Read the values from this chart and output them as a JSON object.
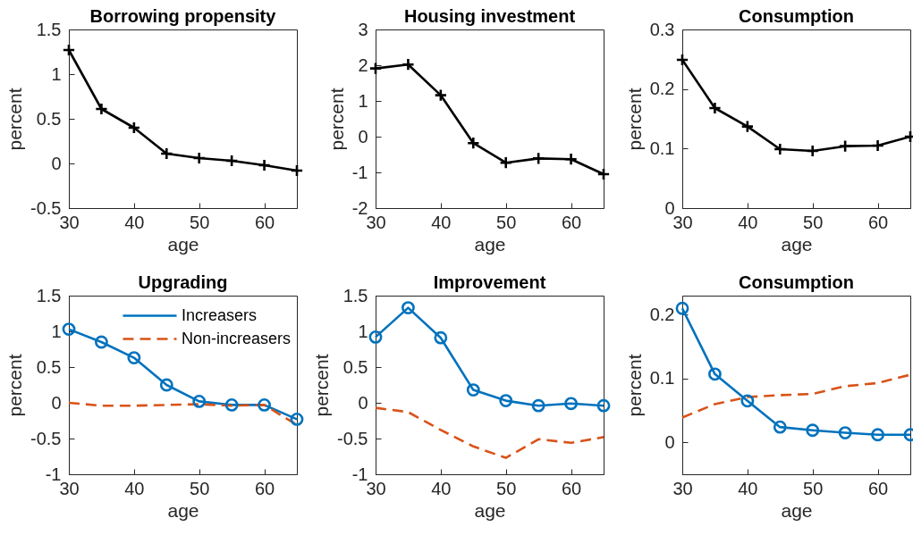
{
  "chart_data": [
    {
      "type": "line",
      "title": "Borrowing propensity",
      "xlabel": "age",
      "ylabel": "percent",
      "x": [
        30,
        35,
        40,
        45,
        50,
        55,
        60,
        65
      ],
      "xlim": [
        30,
        65
      ],
      "xticks": [
        30,
        40,
        50,
        60
      ],
      "ylim": [
        -0.5,
        1.5
      ],
      "yticks": [
        -0.5,
        0,
        0.5,
        1,
        1.5
      ],
      "series": [
        {
          "color": "#000000",
          "marker": "cross",
          "line_style": "solid",
          "values": [
            1.27,
            0.61,
            0.4,
            0.11,
            0.06,
            0.03,
            -0.02,
            -0.08
          ]
        }
      ]
    },
    {
      "type": "line",
      "title": "Housing investment",
      "xlabel": "age",
      "ylabel": "percent",
      "x": [
        30,
        35,
        40,
        45,
        50,
        55,
        60,
        65
      ],
      "xlim": [
        30,
        65
      ],
      "xticks": [
        30,
        40,
        50,
        60
      ],
      "ylim": [
        -2,
        3
      ],
      "yticks": [
        -2,
        -1,
        0,
        1,
        2,
        3
      ],
      "series": [
        {
          "color": "#000000",
          "marker": "cross",
          "line_style": "solid",
          "values": [
            1.91,
            2.02,
            1.16,
            -0.18,
            -0.73,
            -0.61,
            -0.63,
            -1.05
          ]
        }
      ]
    },
    {
      "type": "line",
      "title": "Consumption",
      "xlabel": "age",
      "ylabel": "percent",
      "x": [
        30,
        35,
        40,
        45,
        50,
        55,
        60,
        65
      ],
      "xlim": [
        30,
        65
      ],
      "xticks": [
        30,
        40,
        50,
        60
      ],
      "ylim": [
        0,
        0.3
      ],
      "yticks": [
        0,
        0.1,
        0.2,
        0.3
      ],
      "series": [
        {
          "color": "#000000",
          "marker": "cross",
          "line_style": "solid",
          "values": [
            0.249,
            0.168,
            0.137,
            0.099,
            0.096,
            0.104,
            0.105,
            0.12
          ]
        }
      ]
    },
    {
      "type": "line",
      "title": "Upgrading",
      "xlabel": "age",
      "ylabel": "percent",
      "x": [
        30,
        35,
        40,
        45,
        50,
        55,
        60,
        65
      ],
      "xlim": [
        30,
        65
      ],
      "xticks": [
        30,
        40,
        50,
        60
      ],
      "ylim": [
        -1,
        1.5
      ],
      "yticks": [
        -1,
        -0.5,
        0,
        0.5,
        1,
        1.5
      ],
      "legend": "top right",
      "series": [
        {
          "name": "Increasers",
          "color": "#0072bd",
          "marker": "circle",
          "line_style": "solid",
          "values": [
            1.03,
            0.85,
            0.63,
            0.25,
            0.02,
            -0.03,
            -0.03,
            -0.23
          ]
        },
        {
          "name": "Non-increasers",
          "color": "#d95319",
          "marker": "none",
          "line_style": "dashed",
          "values": [
            0,
            -0.04,
            -0.04,
            -0.03,
            -0.02,
            -0.04,
            -0.03,
            -0.31
          ]
        }
      ]
    },
    {
      "type": "line",
      "title": "Improvement",
      "xlabel": "age",
      "ylabel": "percent",
      "x": [
        30,
        35,
        40,
        45,
        50,
        55,
        60,
        65
      ],
      "xlim": [
        30,
        65
      ],
      "xticks": [
        30,
        40,
        50,
        60
      ],
      "ylim": [
        -1,
        1.5
      ],
      "yticks": [
        -1,
        -0.5,
        0,
        0.5,
        1,
        1.5
      ],
      "series": [
        {
          "color": "#0072bd",
          "marker": "circle",
          "line_style": "solid",
          "values": [
            0.92,
            1.33,
            0.91,
            0.18,
            0.03,
            -0.04,
            -0.01,
            -0.04
          ]
        },
        {
          "color": "#d95319",
          "marker": "none",
          "line_style": "dashed",
          "values": [
            -0.07,
            -0.13,
            -0.38,
            -0.61,
            -0.77,
            -0.51,
            -0.56,
            -0.48
          ]
        }
      ]
    },
    {
      "type": "line",
      "title": "Consumption",
      "xlabel": "age",
      "ylabel": "percent",
      "x": [
        30,
        35,
        40,
        45,
        50,
        55,
        60,
        65
      ],
      "xlim": [
        30,
        65
      ],
      "xticks": [
        30,
        40,
        50,
        60
      ],
      "ylim": [
        -0.05,
        0.23
      ],
      "yticks": [
        0,
        0.1,
        0.2
      ],
      "series": [
        {
          "color": "#0072bd",
          "marker": "circle",
          "line_style": "solid",
          "values": [
            0.21,
            0.107,
            0.065,
            0.024,
            0.019,
            0.015,
            0.012,
            0.012
          ]
        },
        {
          "color": "#d95319",
          "marker": "none",
          "line_style": "dashed",
          "values": [
            0.039,
            0.06,
            0.071,
            0.074,
            0.076,
            0.088,
            0.093,
            0.106
          ]
        }
      ]
    }
  ]
}
